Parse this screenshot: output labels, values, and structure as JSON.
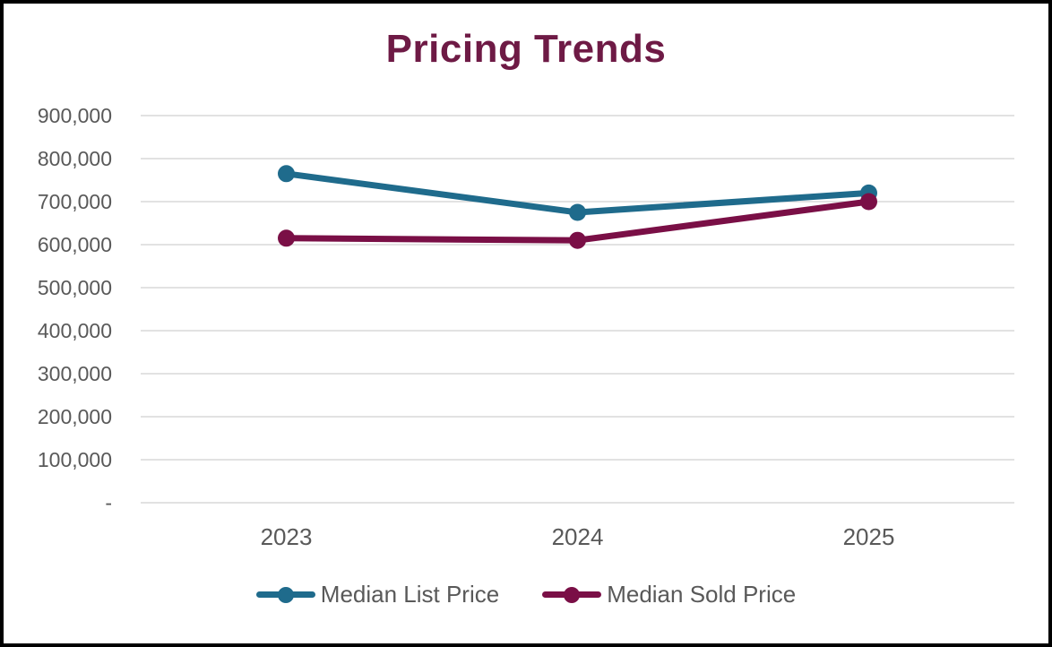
{
  "page": {
    "background_color": "#ffffff",
    "frame_border_color": "#000000"
  },
  "chart_data": {
    "type": "line",
    "title": "Pricing Trends",
    "title_color": "#6E1A45",
    "categories": [
      "2023",
      "2024",
      "2025"
    ],
    "series": [
      {
        "name": "Median List Price",
        "color": "#1F6B8C",
        "values": [
          765000,
          675000,
          720000
        ]
      },
      {
        "name": "Median Sold Price",
        "color": "#7A0F46",
        "values": [
          615000,
          610000,
          700000
        ]
      }
    ],
    "xlabel": "",
    "ylabel": "",
    "ylim": [
      0,
      900000
    ],
    "y_axis": {
      "min": 0,
      "max": 900000,
      "step": 100000,
      "tick_labels_bottom_to_top": [
        "-",
        "100,000",
        "200,000",
        "300,000",
        "400,000",
        "500,000",
        "600,000",
        "700,000",
        "800,000",
        "900,000"
      ]
    },
    "grid": true,
    "gridline_color": "#D9D9D9",
    "axis_text_color": "#595959",
    "legend_position": "bottom"
  }
}
